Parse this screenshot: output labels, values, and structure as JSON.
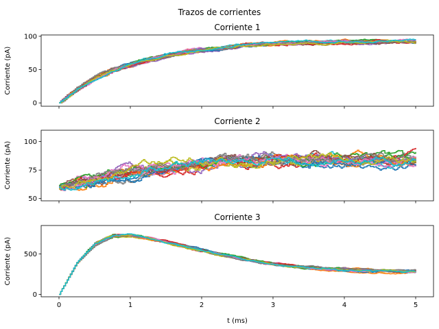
{
  "figure": {
    "suptitle": "Trazos de corrientes"
  },
  "chart_data": [
    {
      "type": "line",
      "title": "Corriente 1",
      "xlabel": "",
      "ylabel": "Corriente (pA)",
      "xlim": [
        -0.25,
        5.25
      ],
      "ylim": [
        -5,
        102
      ],
      "xticks": [
        0,
        1,
        2,
        3,
        4,
        5
      ],
      "xtick_labels_visible": false,
      "yticks": [
        0,
        50,
        100
      ],
      "ytick_labels": [
        "0",
        "50",
        "100"
      ],
      "grid": false,
      "legend": "none",
      "series_count": 20,
      "x": [
        0,
        0.25,
        0.5,
        0.75,
        1,
        1.25,
        1.5,
        1.75,
        2,
        2.25,
        2.5,
        2.75,
        3,
        3.25,
        3.5,
        3.75,
        4,
        4.25,
        4.5,
        4.75,
        5
      ],
      "mean_values": [
        0,
        20,
        36,
        47,
        56,
        63,
        69,
        74,
        78,
        81,
        84,
        86,
        87,
        88,
        89,
        89,
        90,
        90,
        90,
        90,
        90
      ],
      "spread": 6
    },
    {
      "type": "line",
      "title": "Corriente 2",
      "xlabel": "",
      "ylabel": "Corriente (pA)",
      "xlim": [
        -0.25,
        5.25
      ],
      "ylim": [
        48,
        110
      ],
      "xticks": [
        0,
        1,
        2,
        3,
        4,
        5
      ],
      "xtick_labels_visible": false,
      "yticks": [
        50,
        75,
        100
      ],
      "ytick_labels": [
        "50",
        "75",
        "100"
      ],
      "grid": false,
      "legend": "none",
      "series_count": 20,
      "x": [
        0,
        0.25,
        0.5,
        0.75,
        1,
        1.25,
        1.5,
        1.75,
        2,
        2.25,
        2.5,
        2.75,
        3,
        3.25,
        3.5,
        3.75,
        4,
        4.25,
        4.5,
        4.75,
        5
      ],
      "mean_values": [
        60,
        65,
        70,
        74,
        77,
        79,
        81,
        83,
        85,
        86,
        87,
        87,
        88,
        88,
        88,
        88,
        88,
        88,
        88,
        88,
        88
      ],
      "spread": 11
    },
    {
      "type": "line",
      "title": "Corriente 3",
      "xlabel": "t (ms)",
      "ylabel": "Corriente (pA)",
      "xlim": [
        -0.25,
        5.25
      ],
      "ylim": [
        -30,
        850
      ],
      "xticks": [
        0,
        1,
        2,
        3,
        4,
        5
      ],
      "xtick_labels_visible": true,
      "xtick_labels": [
        "0",
        "1",
        "2",
        "3",
        "4",
        "5"
      ],
      "yticks": [
        0,
        500
      ],
      "ytick_labels": [
        "0",
        "500"
      ],
      "grid": false,
      "legend": "none",
      "series_count": 20,
      "x": [
        0,
        0.25,
        0.5,
        0.75,
        1,
        1.25,
        1.5,
        1.75,
        2,
        2.25,
        2.5,
        2.75,
        3,
        3.25,
        3.5,
        3.75,
        4,
        4.25,
        4.5,
        4.75,
        5
      ],
      "mean_values": [
        0,
        390,
        620,
        720,
        730,
        690,
        640,
        590,
        540,
        490,
        445,
        405,
        375,
        350,
        330,
        315,
        305,
        295,
        290,
        285,
        280
      ],
      "spread": 35
    }
  ],
  "colors": {
    "series": [
      "#1f77b4",
      "#ff7f0e",
      "#2ca02c",
      "#d62728",
      "#9467bd",
      "#8c564b",
      "#e377c2",
      "#7f7f7f",
      "#bcbd22",
      "#17becf"
    ]
  }
}
